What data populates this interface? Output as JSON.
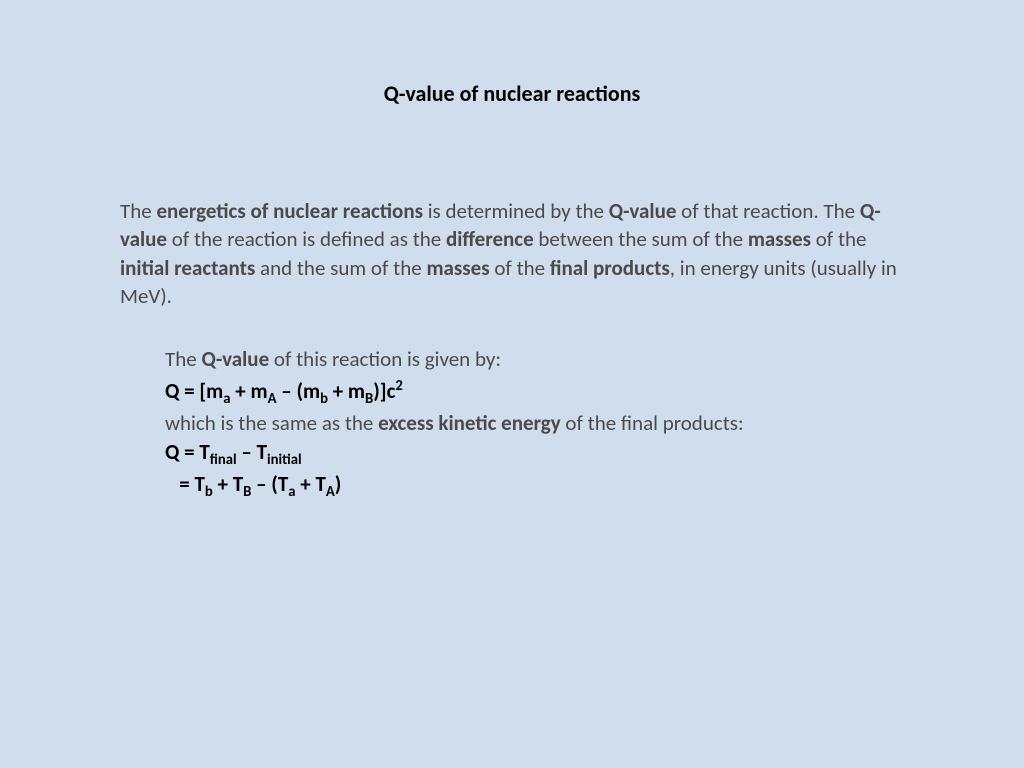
{
  "colors": {
    "background": "#cfddec",
    "text_primary": "#4a4a4a",
    "text_bold": "#000000"
  },
  "typography": {
    "title_fontsize": 22,
    "body_fontsize": 21,
    "line_height": 1.35
  },
  "title": "Q-value of nuclear reactions",
  "para1": {
    "t1": "The ",
    "b1": "energetics of nuclear reactions",
    "t2": " is determined by the ",
    "b2": "Q-value",
    "t3": " of that reaction. The ",
    "b3": "Q-value",
    "t4": " of the reaction is defined as the ",
    "b4": "difference",
    "t5": " between the sum of the ",
    "b5": "masses",
    "t6": " of the ",
    "b6": "initial reactants",
    "t7": " and the sum of the ",
    "b7": "masses",
    "t8": " of the ",
    "b8": "final products",
    "t9": ", in energy units (usually in MeV)."
  },
  "para2": {
    "t1": "The ",
    "b1": "Q-value",
    "t2": " of this reaction is given by:",
    "eq1_q": "Q = [m",
    "eq1_sub_a": "a",
    "eq1_t2": " + m",
    "eq1_sub_A": "A",
    "eq1_t3": " – (m",
    "eq1_sub_b": "b",
    "eq1_t4": " + m",
    "eq1_sub_B": "B",
    "eq1_t5": ")]c",
    "eq1_sup": "2",
    "t3": "which is the same as the ",
    "b2": "excess kinetic energy",
    "t4": " of the final products:",
    "eq2_q": "Q = T",
    "eq2_sub_final": "final",
    "eq2_t2": " – T",
    "eq2_sub_initial": "initial",
    "eq3_prefix": "   = T",
    "eq3_sub_b": "b",
    "eq3_t2": " + T",
    "eq3_sub_B": "B",
    "eq3_t3": " – (T",
    "eq3_sub_a": "a",
    "eq3_t4": " + T",
    "eq3_sub_A": "A",
    "eq3_t5": ")"
  }
}
